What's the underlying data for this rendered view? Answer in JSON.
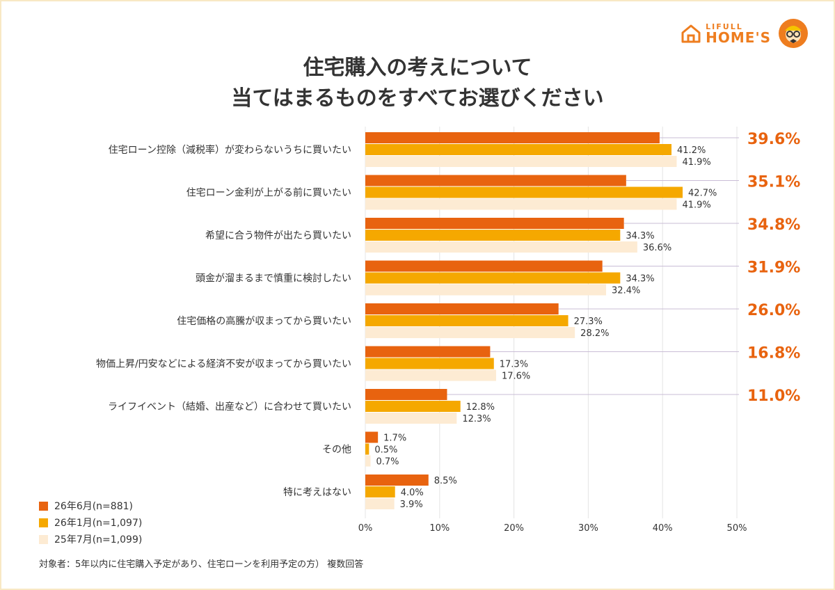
{
  "title_lines": [
    "住宅購入の考えについて",
    "当てはまるものをすべてお選びください"
  ],
  "logo": {
    "top": "LIFULL",
    "bottom": "HOME'S"
  },
  "footnote": "対象者：5年以内に住宅購入予定があり、住宅ローンを利用予定の方） 複数回答",
  "colors": {
    "s1": "#e8630f",
    "s2": "#f5a800",
    "s3": "#fdebd3",
    "highlight": "#e8630f",
    "accent": "#ee7d1f"
  },
  "chart_data": {
    "type": "bar",
    "orientation": "horizontal",
    "categories": [
      "住宅ローン控除（減税率）が変わらないうちに買いたい",
      "住宅ローン金利が上がる前に買いたい",
      "希望に合う物件が出たら買いたい",
      "頭金が溜まるまで慎重に検討したい",
      "住宅価格の高騰が収まってから買いたい",
      "物価上昇/円安などによる経済不安が収まってから買いたい",
      "ライフイベント（結婚、出産など）に合わせて買いたい",
      "その他",
      "特に考えはない"
    ],
    "series": [
      {
        "name": "26年6月(n=881)",
        "values": [
          39.6,
          35.1,
          34.8,
          31.9,
          26.0,
          16.8,
          11.0,
          1.7,
          8.5
        ],
        "labels": [
          "39.6%",
          "35.1%",
          "34.8%",
          "31.9%",
          "26.0%",
          "16.8%",
          "11.0%",
          "1.7%",
          "8.5%"
        ]
      },
      {
        "name": "26年1月(n=1,097)",
        "values": [
          41.2,
          42.7,
          34.3,
          34.3,
          27.3,
          17.3,
          12.8,
          0.5,
          4.0
        ],
        "labels": [
          "41.2%",
          "42.7%",
          "34.3%",
          "34.3%",
          "27.3%",
          "17.3%",
          "12.8%",
          "0.5%",
          "4.0%"
        ]
      },
      {
        "name": "25年7月(n=1,099)",
        "values": [
          41.9,
          41.9,
          36.6,
          32.4,
          28.2,
          17.6,
          12.3,
          0.7,
          3.9
        ],
        "labels": [
          "41.9%",
          "41.9%",
          "36.6%",
          "32.4%",
          "28.2%",
          "17.6%",
          "12.3%",
          "0.7%",
          "3.9%"
        ]
      }
    ],
    "highlight_count": 7,
    "xlim": [
      0,
      50
    ],
    "xticks": [
      0,
      10,
      20,
      30,
      40,
      50
    ],
    "xtick_labels": [
      "0%",
      "10%",
      "20%",
      "30%",
      "40%",
      "50%"
    ],
    "grid": "vertical",
    "legend": "bottom-left"
  }
}
